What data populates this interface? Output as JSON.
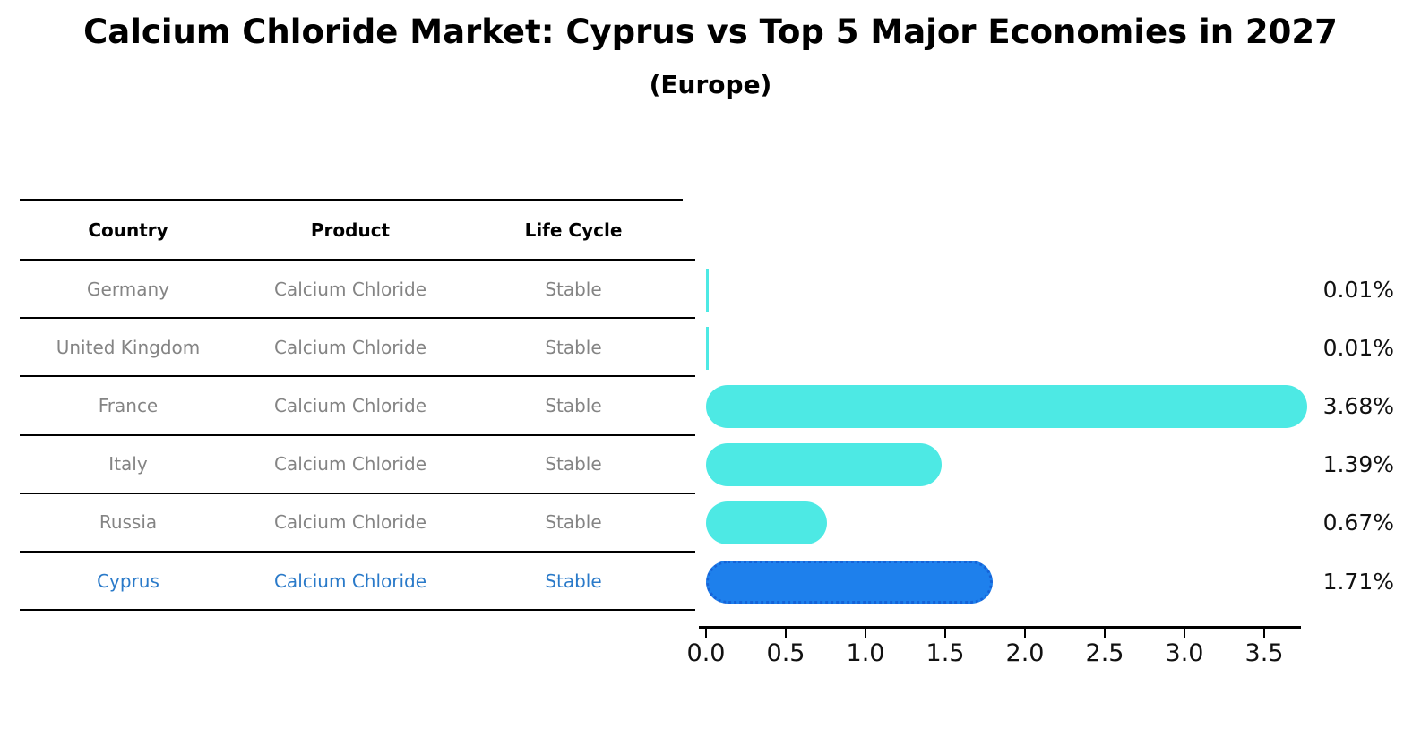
{
  "title": "Calcium Chloride Market: Cyprus vs Top 5 Major Economies in 2027",
  "subtitle": "(Europe)",
  "table": {
    "headers": [
      "Country",
      "Product",
      "Life Cycle"
    ],
    "rows": [
      {
        "country": "Germany",
        "product": "Calcium Chloride",
        "life_cycle": "Stable",
        "highlight": false
      },
      {
        "country": "United Kingdom",
        "product": "Calcium Chloride",
        "life_cycle": "Stable",
        "highlight": false
      },
      {
        "country": "France",
        "product": "Calcium Chloride",
        "life_cycle": "Stable",
        "highlight": false
      },
      {
        "country": "Italy",
        "product": "Calcium Chloride",
        "life_cycle": "Stable",
        "highlight": false
      },
      {
        "country": "Russia",
        "product": "Calcium Chloride",
        "life_cycle": "Stable",
        "highlight": false
      },
      {
        "country": "Cyprus",
        "product": "Calcium Chloride",
        "life_cycle": "Stable",
        "highlight": true
      }
    ]
  },
  "chart_data": {
    "type": "bar",
    "orientation": "horizontal",
    "categories": [
      "Germany",
      "United Kingdom",
      "France",
      "Italy",
      "Russia",
      "Cyprus"
    ],
    "values": [
      0.01,
      0.01,
      3.68,
      1.39,
      0.67,
      1.71
    ],
    "value_labels": [
      "0.01%",
      "0.01%",
      "3.68%",
      "1.39%",
      "0.67%",
      "1.71%"
    ],
    "x_tick_labels": [
      "0.0",
      "0.5",
      "1.0",
      "1.5",
      "2.0",
      "2.5",
      "3.0",
      "3.5"
    ],
    "x_tick_values": [
      0.0,
      0.5,
      1.0,
      1.5,
      2.0,
      2.5,
      3.0,
      3.5
    ],
    "xlim": [
      0,
      3.77
    ],
    "grid": false,
    "legend": false,
    "bar_color": "#4de9e4",
    "highlight_index": 5,
    "highlight_bar_color": "#1e80ec",
    "highlight_border_color": "#1563d8"
  },
  "colors": {
    "row_text": "#848484",
    "highlight_text": "#2a7ac9",
    "line": "#000000"
  }
}
